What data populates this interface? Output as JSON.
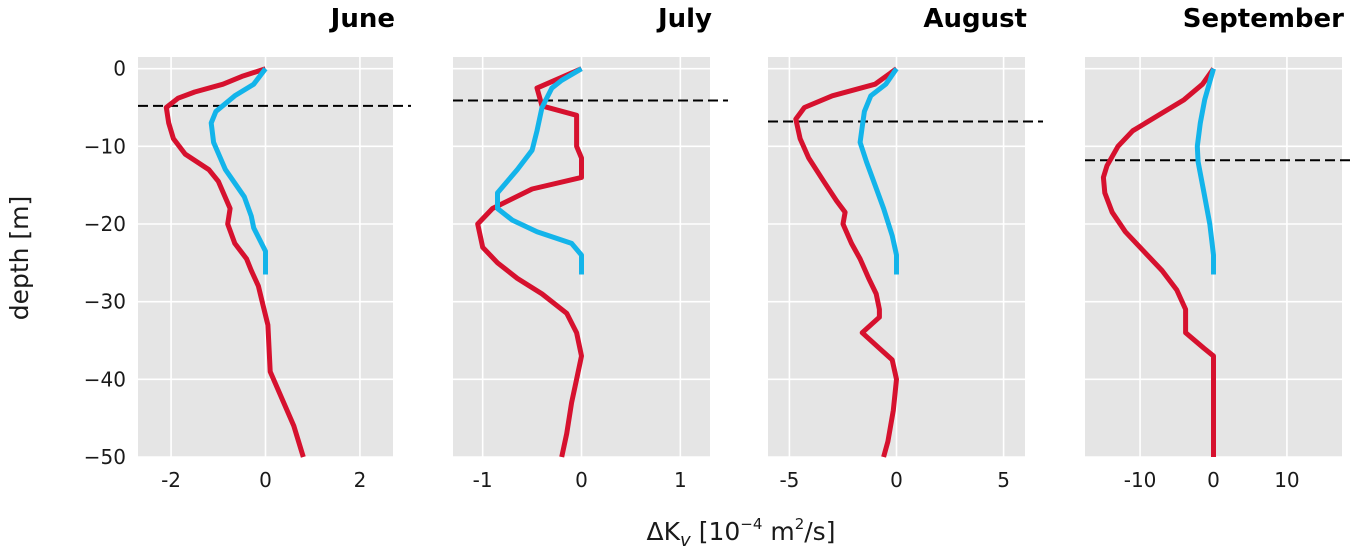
{
  "figure": {
    "ylabel": "depth [m]",
    "xlabel_delta": "ΔK",
    "xlabel_sub": "v",
    "xlabel_bracket_open": "[10",
    "xlabel_exp": "−4",
    "xlabel_unit": " m",
    "xlabel_unit_exp": "2",
    "xlabel_tail": "/s]"
  },
  "colors": {
    "background": "#e5e5e5",
    "grid": "#ffffff",
    "red_series": "#d6112e",
    "blue_series": "#13b4ea",
    "dashed_line": "#000000"
  },
  "chart_data": [
    {
      "type": "line",
      "title": "June",
      "xlim": [
        -2.7,
        2.7
      ],
      "ylim": [
        -50,
        1.5
      ],
      "xticks": [
        -2,
        0,
        2
      ],
      "xtick_labels": [
        "-2",
        "0",
        "2"
      ],
      "yticks": [
        0,
        -10,
        -20,
        -30,
        -40,
        -50
      ],
      "ytick_labels": [
        "0",
        "−10",
        "−20",
        "−30",
        "−40",
        "−50"
      ],
      "show_y_labels": true,
      "grid": true,
      "hline_depth": -4.8,
      "series": [
        {
          "color": "red",
          "points": [
            [
              0,
              0
            ],
            [
              -0.5,
              -1
            ],
            [
              -0.9,
              -2
            ],
            [
              -1.5,
              -3
            ],
            [
              -1.85,
              -3.8
            ],
            [
              -2.1,
              -5
            ],
            [
              -2.05,
              -7
            ],
            [
              -1.95,
              -9
            ],
            [
              -1.7,
              -11
            ],
            [
              -1.2,
              -13
            ],
            [
              -1.0,
              -14.5
            ],
            [
              -0.75,
              -18
            ],
            [
              -0.8,
              -20
            ],
            [
              -0.65,
              -22.5
            ],
            [
              -0.4,
              -24.5
            ],
            [
              -0.3,
              -26
            ],
            [
              -0.15,
              -28
            ],
            [
              -0.05,
              -30.5
            ],
            [
              0.05,
              -33
            ],
            [
              0.1,
              -39
            ],
            [
              0.35,
              -42.5
            ],
            [
              0.6,
              -46
            ],
            [
              0.8,
              -50
            ]
          ]
        },
        {
          "color": "blue",
          "points": [
            [
              0,
              0
            ],
            [
              -0.25,
              -2
            ],
            [
              -0.65,
              -3.5
            ],
            [
              -1.05,
              -5.5
            ],
            [
              -1.15,
              -7
            ],
            [
              -1.1,
              -9.5
            ],
            [
              -0.85,
              -13
            ],
            [
              -0.45,
              -16.5
            ],
            [
              -0.3,
              -19
            ],
            [
              -0.25,
              -20.5
            ],
            [
              0,
              -23.5
            ],
            [
              0,
              -26.5
            ]
          ]
        }
      ]
    },
    {
      "type": "line",
      "title": "July",
      "xlim": [
        -1.3,
        1.3
      ],
      "ylim": [
        -50,
        1.5
      ],
      "xticks": [
        -1,
        0,
        1
      ],
      "xtick_labels": [
        "-1",
        "0",
        "1"
      ],
      "yticks": [
        0,
        -10,
        -20,
        -30,
        -40,
        -50
      ],
      "ytick_labels": [
        "0",
        "−10",
        "−20",
        "−30",
        "−40",
        "−50"
      ],
      "show_y_labels": false,
      "grid": true,
      "hline_depth": -4.1,
      "series": [
        {
          "color": "red",
          "points": [
            [
              0,
              0
            ],
            [
              -0.45,
              -2.5
            ],
            [
              -0.4,
              -4.8
            ],
            [
              -0.05,
              -6
            ],
            [
              -0.05,
              -10
            ],
            [
              0,
              -11.5
            ],
            [
              0,
              -14
            ],
            [
              -0.5,
              -15.5
            ],
            [
              -0.9,
              -18
            ],
            [
              -1.05,
              -20
            ],
            [
              -1.0,
              -23
            ],
            [
              -0.85,
              -25
            ],
            [
              -0.65,
              -27
            ],
            [
              -0.4,
              -29
            ],
            [
              -0.15,
              -31.5
            ],
            [
              -0.05,
              -34
            ],
            [
              0,
              -37
            ],
            [
              -0.05,
              -40
            ],
            [
              -0.1,
              -43
            ],
            [
              -0.15,
              -47
            ],
            [
              -0.2,
              -50
            ]
          ]
        },
        {
          "color": "blue",
          "points": [
            [
              0,
              0
            ],
            [
              -0.2,
              -1.5
            ],
            [
              -0.3,
              -2.5
            ],
            [
              -0.4,
              -5
            ],
            [
              -0.45,
              -8
            ],
            [
              -0.5,
              -10.5
            ],
            [
              -0.65,
              -13
            ],
            [
              -0.85,
              -16
            ],
            [
              -0.85,
              -18
            ],
            [
              -0.7,
              -19.5
            ],
            [
              -0.45,
              -21
            ],
            [
              -0.1,
              -22.5
            ],
            [
              0,
              -24
            ],
            [
              0,
              -26.5
            ]
          ]
        }
      ]
    },
    {
      "type": "line",
      "title": "August",
      "xlim": [
        -6,
        6
      ],
      "ylim": [
        -50,
        1.5
      ],
      "xticks": [
        -5,
        0,
        5
      ],
      "xtick_labels": [
        "-5",
        "0",
        "5"
      ],
      "yticks": [
        0,
        -10,
        -20,
        -30,
        -40,
        -50
      ],
      "ytick_labels": [
        "0",
        "−10",
        "−20",
        "−30",
        "−40",
        "−50"
      ],
      "show_y_labels": false,
      "grid": true,
      "hline_depth": -6.8,
      "series": [
        {
          "color": "red",
          "points": [
            [
              0,
              0
            ],
            [
              -1.0,
              -2
            ],
            [
              -3.0,
              -3.5
            ],
            [
              -4.3,
              -5
            ],
            [
              -4.7,
              -6.5
            ],
            [
              -4.5,
              -9
            ],
            [
              -4.1,
              -11.5
            ],
            [
              -3.4,
              -14.5
            ],
            [
              -2.8,
              -17
            ],
            [
              -2.4,
              -18.5
            ],
            [
              -2.5,
              -20
            ],
            [
              -2.1,
              -22.5
            ],
            [
              -1.7,
              -24.5
            ],
            [
              -1.3,
              -27
            ],
            [
              -0.95,
              -29
            ],
            [
              -0.8,
              -31
            ],
            [
              -0.8,
              -32
            ],
            [
              -1.6,
              -34
            ],
            [
              -0.8,
              -36
            ],
            [
              -0.2,
              -37.5
            ],
            [
              0,
              -40
            ],
            [
              -0.15,
              -44
            ],
            [
              -0.4,
              -48
            ],
            [
              -0.6,
              -50
            ]
          ]
        },
        {
          "color": "blue",
          "points": [
            [
              0,
              0
            ],
            [
              -0.5,
              -2
            ],
            [
              -1.2,
              -3.5
            ],
            [
              -1.5,
              -5.5
            ],
            [
              -1.6,
              -7.5
            ],
            [
              -1.7,
              -9.5
            ],
            [
              -1.4,
              -12
            ],
            [
              -1.0,
              -15
            ],
            [
              -0.6,
              -18
            ],
            [
              -0.2,
              -21.5
            ],
            [
              0,
              -24
            ],
            [
              0,
              -26.5
            ]
          ]
        }
      ]
    },
    {
      "type": "line",
      "title": "September",
      "xlim": [
        -17.5,
        17.5
      ],
      "ylim": [
        -50,
        1.5
      ],
      "xticks": [
        -10,
        0,
        10
      ],
      "xtick_labels": [
        "-10",
        "0",
        "10"
      ],
      "yticks": [
        0,
        -10,
        -20,
        -30,
        -40,
        -50
      ],
      "ytick_labels": [
        "0",
        "−10",
        "−20",
        "−30",
        "−40",
        "−50"
      ],
      "show_y_labels": false,
      "grid": true,
      "hline_depth": -11.8,
      "series": [
        {
          "color": "red",
          "points": [
            [
              0,
              0
            ],
            [
              -1.5,
              -2
            ],
            [
              -4,
              -4
            ],
            [
              -7.5,
              -6
            ],
            [
              -11,
              -8
            ],
            [
              -13,
              -10
            ],
            [
              -14.5,
              -12.5
            ],
            [
              -15,
              -14
            ],
            [
              -14.8,
              -16
            ],
            [
              -13.8,
              -18.5
            ],
            [
              -12,
              -21
            ],
            [
              -9.5,
              -23.5
            ],
            [
              -7,
              -26
            ],
            [
              -5,
              -28.5
            ],
            [
              -3.8,
              -31
            ],
            [
              -3.8,
              -34
            ],
            [
              -1.3,
              -36
            ],
            [
              0,
              -37
            ],
            [
              0,
              -40
            ],
            [
              0,
              -50
            ]
          ]
        },
        {
          "color": "blue",
          "points": [
            [
              0,
              0
            ],
            [
              -0.6,
              -2
            ],
            [
              -1.2,
              -4
            ],
            [
              -1.8,
              -7
            ],
            [
              -2.2,
              -10
            ],
            [
              -2.1,
              -12
            ],
            [
              -1.3,
              -16
            ],
            [
              -0.5,
              -20
            ],
            [
              0,
              -24
            ],
            [
              0,
              -26.5
            ]
          ]
        }
      ]
    }
  ]
}
